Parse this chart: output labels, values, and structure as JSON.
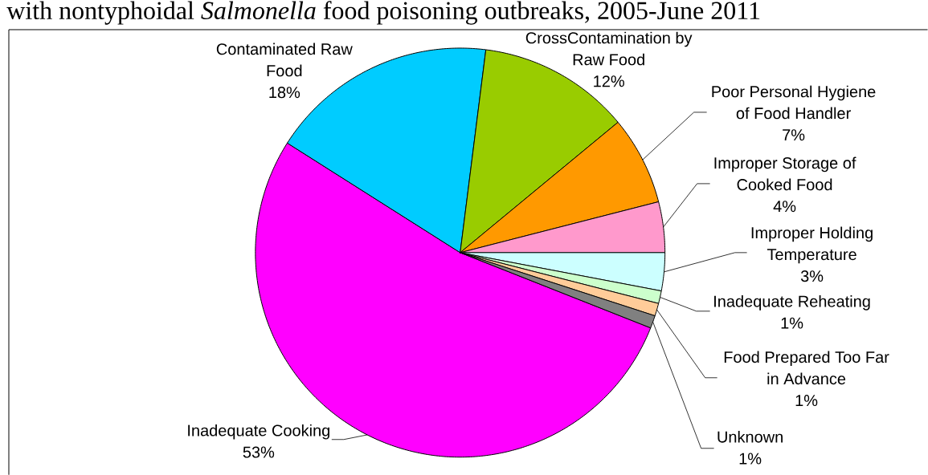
{
  "chart_data": {
    "type": "pie",
    "title": "with nontyphoidal *Salmonella* food poisoning outbreaks, 2005-June 2011",
    "categories": [
      "Inadequate Cooking",
      "Contaminated Raw Food",
      "CrossContamination by Raw Food",
      "Poor Personal Hygiene of Food Handler",
      "Improper Storage of Cooked Food",
      "Improper Holding Temperature",
      "Inadequate Reheating",
      "Food Prepared Too Far in Advance",
      "Unknown"
    ],
    "values": [
      53,
      18,
      12,
      7,
      4,
      3,
      1,
      1,
      1
    ],
    "value_labels": [
      "53%",
      "18%",
      "12%",
      "7%",
      "4%",
      "3%",
      "1%",
      "1%",
      "1%"
    ],
    "colors": [
      "#ff00ff",
      "#00ccff",
      "#99cc00",
      "#ff9900",
      "#ff99cc",
      "#ccffff",
      "#ccffcc",
      "#ffcc99",
      "#808080"
    ]
  }
}
